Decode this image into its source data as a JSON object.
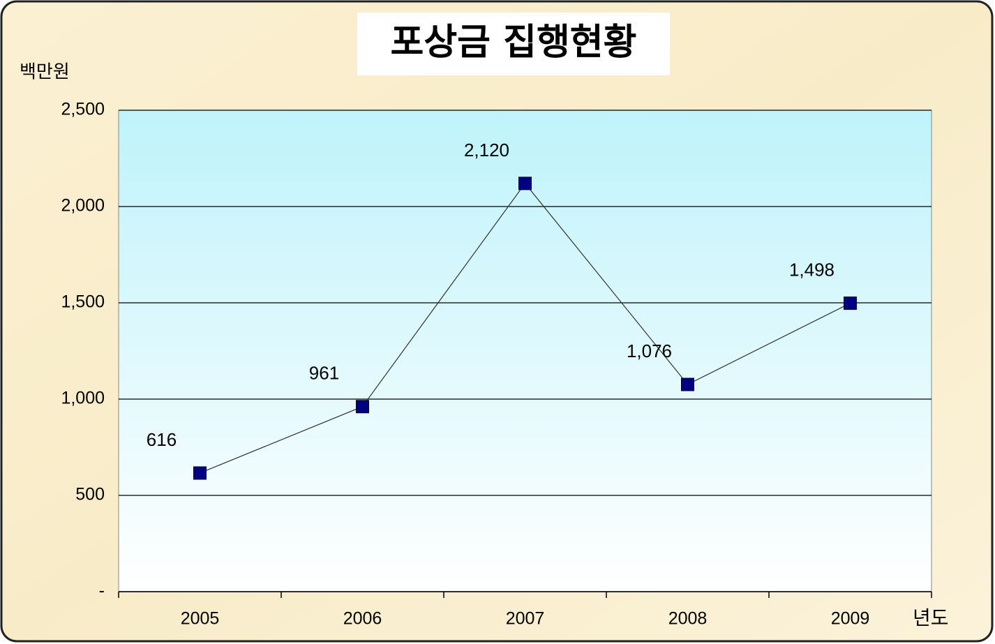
{
  "chart_data": {
    "type": "line",
    "title": "포상금 집행현황",
    "y_axis_label": "백만원",
    "x_axis_label": "년도",
    "categories": [
      "2005",
      "2006",
      "2007",
      "2008",
      "2009"
    ],
    "series": [
      {
        "name": "포상금",
        "color": "#000080",
        "values": [
          616,
          961,
          2120,
          1076,
          1498
        ],
        "value_labels": [
          "616",
          "961",
          "2,120",
          "1,076",
          "1,498"
        ]
      }
    ],
    "ylim": [
      0,
      2500
    ],
    "yticks": [
      {
        "value": 0,
        "label": "-"
      },
      500,
      {
        "value": 1000,
        "label": "1,000"
      },
      {
        "value": 1500,
        "label": "1,500"
      },
      {
        "value": 2000,
        "label": "2,000"
      },
      {
        "value": 2500,
        "label": "2,500"
      }
    ],
    "grid": true
  }
}
